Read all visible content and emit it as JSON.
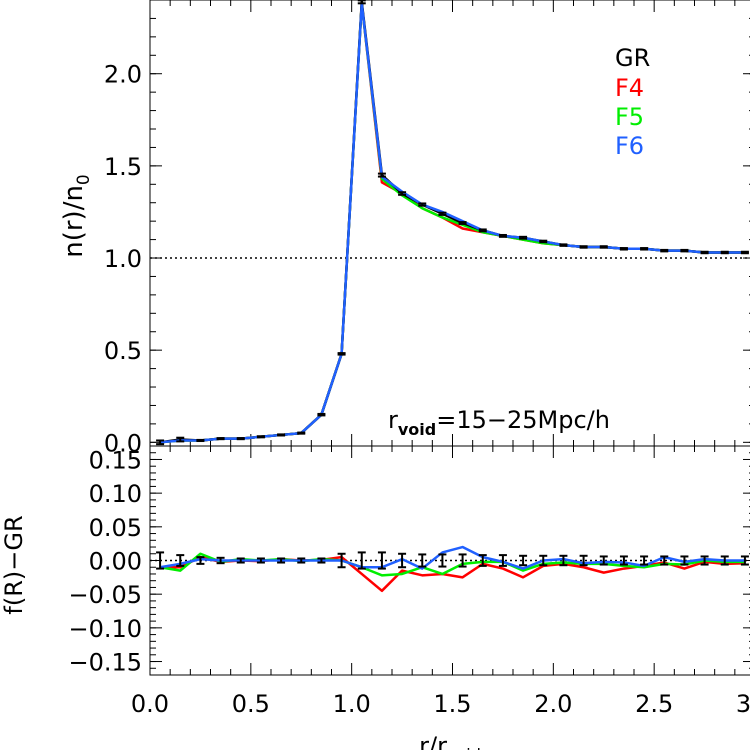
{
  "chart_data": [
    {
      "type": "line",
      "panel": "top",
      "ylabel": "n(r)/n",
      "ylabel_subscript": "0",
      "xlim": [
        0.0,
        3.0
      ],
      "ylim": [
        -0.02,
        2.4
      ],
      "yticks": [
        "0.0",
        "0.5",
        "1.0",
        "1.5",
        "2.0"
      ],
      "reference_line": {
        "y": 1.0,
        "style": "dotted"
      },
      "annotation": {
        "main": "r",
        "subscript": "void",
        "text": "=15−25Mpc/h"
      },
      "legend": {
        "position": "top-right",
        "entries": [
          {
            "name": "GR",
            "color": "#000000"
          },
          {
            "name": "F4",
            "color": "#ff0000"
          },
          {
            "name": "F5",
            "color": "#00ee00"
          },
          {
            "name": "F6",
            "color": "#2060ff"
          }
        ]
      },
      "x": [
        0.05,
        0.15,
        0.25,
        0.35,
        0.45,
        0.55,
        0.65,
        0.75,
        0.85,
        0.95,
        1.05,
        1.15,
        1.25,
        1.35,
        1.45,
        1.55,
        1.65,
        1.75,
        1.85,
        1.95,
        2.05,
        2.15,
        2.25,
        2.35,
        2.45,
        2.55,
        2.65,
        2.75,
        2.85,
        2.95
      ],
      "series": [
        {
          "name": "F4",
          "color": "#ff0000",
          "values": [
            0.0,
            0.01,
            0.01,
            0.02,
            0.02,
            0.03,
            0.04,
            0.05,
            0.15,
            0.48,
            2.38,
            1.41,
            1.35,
            1.27,
            1.22,
            1.16,
            1.14,
            1.12,
            1.1,
            1.08,
            1.07,
            1.06,
            1.06,
            1.05,
            1.05,
            1.04,
            1.04,
            1.03,
            1.03,
            1.03
          ]
        },
        {
          "name": "F5",
          "color": "#00ee00",
          "values": [
            0.0,
            0.01,
            0.01,
            0.02,
            0.02,
            0.03,
            0.04,
            0.05,
            0.15,
            0.48,
            2.38,
            1.43,
            1.34,
            1.27,
            1.22,
            1.18,
            1.14,
            1.12,
            1.1,
            1.08,
            1.07,
            1.06,
            1.06,
            1.05,
            1.05,
            1.04,
            1.04,
            1.03,
            1.03,
            1.03
          ]
        },
        {
          "name": "GR",
          "color": "#000000",
          "values": [
            0.0,
            0.015,
            0.01,
            0.02,
            0.02,
            0.03,
            0.04,
            0.05,
            0.15,
            0.48,
            2.39,
            1.45,
            1.35,
            1.29,
            1.24,
            1.19,
            1.15,
            1.12,
            1.11,
            1.09,
            1.07,
            1.06,
            1.06,
            1.05,
            1.05,
            1.04,
            1.04,
            1.03,
            1.03,
            1.03
          ]
        },
        {
          "name": "F6",
          "color": "#2060ff",
          "values": [
            0.0,
            0.01,
            0.01,
            0.02,
            0.02,
            0.03,
            0.04,
            0.05,
            0.15,
            0.48,
            2.38,
            1.44,
            1.36,
            1.29,
            1.25,
            1.2,
            1.15,
            1.12,
            1.11,
            1.09,
            1.07,
            1.06,
            1.06,
            1.05,
            1.05,
            1.04,
            1.04,
            1.03,
            1.03,
            1.03
          ]
        }
      ],
      "gr_errors": [
        0.01,
        0.01,
        0.003,
        0.003,
        0.003,
        0.003,
        0.003,
        0.003,
        0.004,
        0.004,
        0.008,
        0.008,
        0.007,
        0.006,
        0.006,
        0.005,
        0.005,
        0.005,
        0.005,
        0.004,
        0.004,
        0.004,
        0.004,
        0.004,
        0.004,
        0.004,
        0.004,
        0.004,
        0.004,
        0.004
      ]
    },
    {
      "type": "line",
      "panel": "bottom",
      "xlabel": "r/r",
      "xlabel_subscript": "void",
      "ylabel": "f(R)−GR",
      "xlim": [
        0.0,
        3.0
      ],
      "ylim": [
        -0.17,
        0.17
      ],
      "xticks": [
        "0.0",
        "0.5",
        "1.0",
        "1.5",
        "2.0",
        "2.5",
        "3.0"
      ],
      "yticks": [
        "−0.15",
        "−0.10",
        "−0.05",
        "0.00",
        "0.05",
        "0.10",
        "0.15"
      ],
      "reference_line": {
        "y": 0.0,
        "style": "dotted"
      },
      "x": [
        0.05,
        0.15,
        0.25,
        0.35,
        0.45,
        0.55,
        0.65,
        0.75,
        0.85,
        0.95,
        1.05,
        1.15,
        1.25,
        1.35,
        1.45,
        1.55,
        1.65,
        1.75,
        1.85,
        1.95,
        2.05,
        2.15,
        2.25,
        2.35,
        2.45,
        2.55,
        2.65,
        2.75,
        2.85,
        2.95
      ],
      "series": [
        {
          "name": "F4",
          "color": "#ff0000",
          "values": [
            -0.01,
            -0.01,
            0.005,
            -0.002,
            0.0,
            -0.001,
            0.002,
            0.0,
            0.001,
            0.005,
            -0.02,
            -0.045,
            -0.015,
            -0.022,
            -0.02,
            -0.025,
            -0.005,
            -0.012,
            -0.025,
            -0.008,
            -0.005,
            -0.01,
            -0.018,
            -0.012,
            -0.008,
            -0.003,
            -0.012,
            -0.002,
            -0.005,
            -0.004
          ]
        },
        {
          "name": "F5",
          "color": "#00ee00",
          "values": [
            -0.01,
            -0.015,
            0.01,
            -0.002,
            0.002,
            0.0,
            0.002,
            -0.001,
            0.002,
            0.0,
            -0.01,
            -0.022,
            -0.02,
            -0.01,
            -0.02,
            -0.005,
            -0.002,
            -0.002,
            -0.015,
            -0.005,
            -0.003,
            -0.005,
            -0.005,
            -0.008,
            -0.01,
            -0.005,
            -0.006,
            0.0,
            -0.002,
            -0.002
          ]
        },
        {
          "name": "F6",
          "color": "#2060ff",
          "values": [
            -0.01,
            -0.005,
            0.002,
            0.0,
            0.0,
            0.0,
            0.0,
            0.0,
            0.0,
            0.0,
            -0.01,
            -0.01,
            0.002,
            -0.012,
            0.012,
            0.02,
            0.005,
            -0.002,
            -0.012,
            0.0,
            0.002,
            -0.004,
            -0.002,
            -0.003,
            -0.008,
            0.005,
            -0.002,
            0.002,
            0.0,
            0.0
          ]
        }
      ],
      "gr_errors": [
        0.012,
        0.008,
        0.005,
        0.004,
        0.003,
        0.003,
        0.003,
        0.003,
        0.003,
        0.01,
        0.012,
        0.012,
        0.01,
        0.009,
        0.009,
        0.009,
        0.008,
        0.008,
        0.007,
        0.007,
        0.007,
        0.007,
        0.006,
        0.006,
        0.006,
        0.006,
        0.006,
        0.006,
        0.006,
        0.006
      ]
    }
  ]
}
